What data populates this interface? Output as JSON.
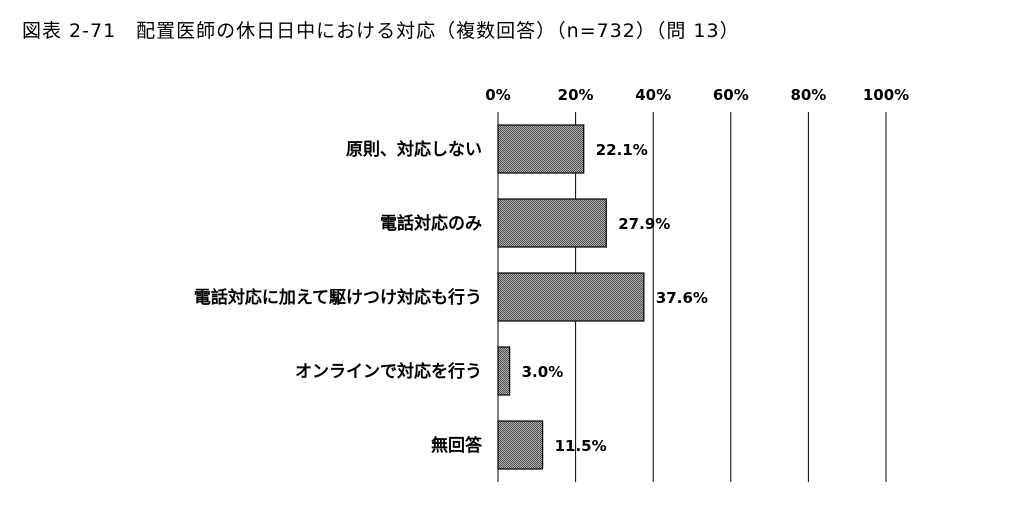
{
  "title": "図表 2-71　配置医師の休日日中における対応（複数回答）（n=732）（問 13）",
  "chart_data": {
    "type": "bar",
    "orientation": "horizontal",
    "categories": [
      "原則、対応しない",
      "電話対応のみ",
      "電話対応に加えて駆けつけ対応も行う",
      "オンラインで対応を行う",
      "無回答"
    ],
    "values": [
      22.1,
      27.9,
      37.6,
      3.0,
      11.5
    ],
    "value_labels": [
      "22.1%",
      "27.9%",
      "37.6%",
      "3.0%",
      "11.5%"
    ],
    "xlim": [
      0,
      100
    ],
    "x_ticks": [
      0,
      20,
      40,
      60,
      80,
      100
    ],
    "x_tick_labels": [
      "0%",
      "20%",
      "40%",
      "60%",
      "80%",
      "100%"
    ],
    "x_axis_position": "top",
    "grid": "vertical",
    "legend": "none",
    "colors": {
      "bar_fill": "#8c8c8c",
      "bar_stroke": "#000000",
      "grid": "#000000"
    }
  }
}
